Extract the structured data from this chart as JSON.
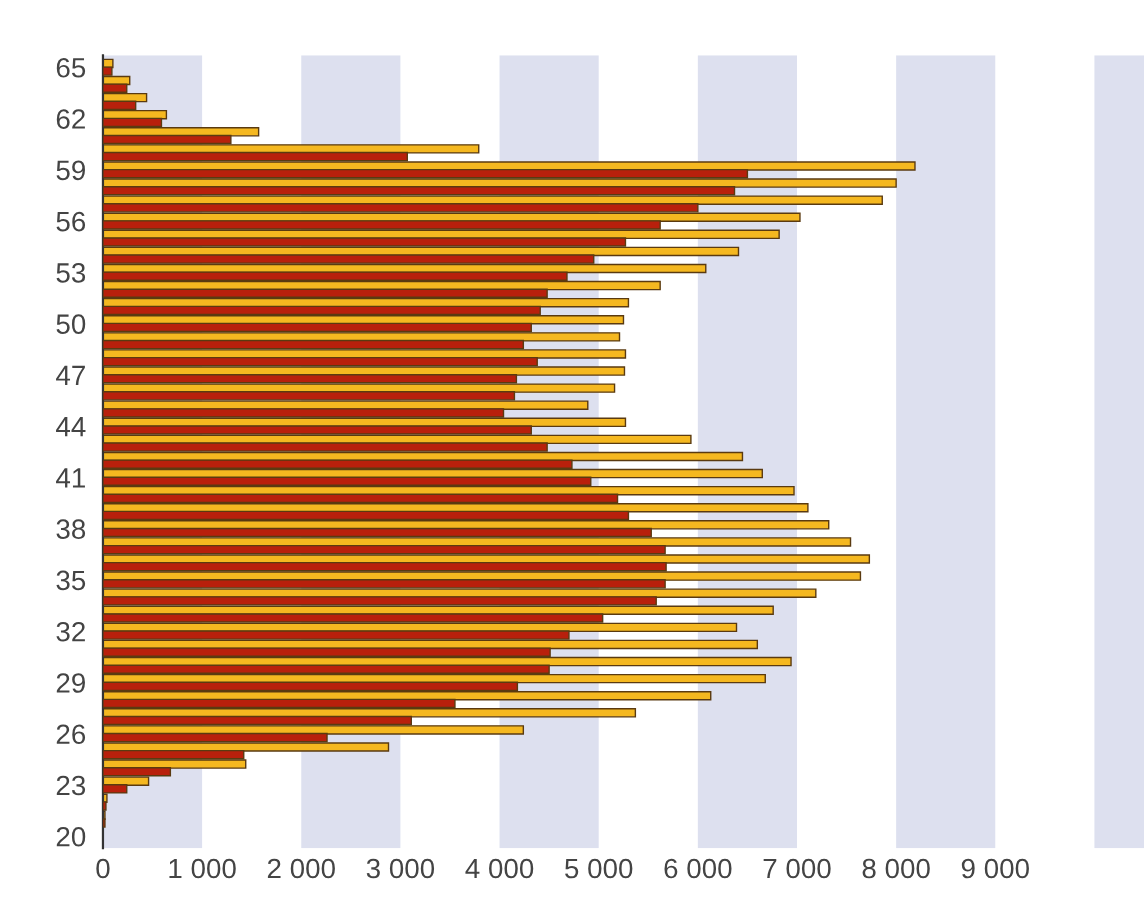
{
  "chart_data": {
    "type": "bar",
    "orientation": "horizontal",
    "categories": [
      "65",
      null,
      null,
      "62",
      null,
      null,
      "59",
      null,
      null,
      "56",
      null,
      null,
      "53",
      null,
      null,
      "50",
      null,
      null,
      "47",
      null,
      null,
      "44",
      null,
      null,
      "41",
      null,
      null,
      "38",
      null,
      null,
      "35",
      null,
      null,
      "32",
      null,
      null,
      "29",
      null,
      null,
      "26",
      null,
      null,
      "23",
      null,
      null,
      "20"
    ],
    "series": [
      {
        "color": "#f5b820",
        "values": [
          100,
          270,
          440,
          640,
          1570,
          3790,
          8190,
          8000,
          7860,
          7030,
          6820,
          6410,
          6080,
          5620,
          5300,
          5250,
          5210,
          5270,
          5260,
          5160,
          4890,
          5270,
          5930,
          6450,
          6650,
          6970,
          7110,
          7320,
          7540,
          7730,
          7640,
          7190,
          6760,
          6390,
          6600,
          6940,
          6680,
          6130,
          5370,
          4240,
          2880,
          1440,
          460,
          40,
          20,
          null
        ]
      },
      {
        "color": "#b8200c",
        "values": [
          90,
          240,
          330,
          590,
          1290,
          3070,
          6500,
          6370,
          6000,
          5620,
          5270,
          4950,
          4680,
          4480,
          4410,
          4320,
          4240,
          4380,
          4170,
          4150,
          4040,
          4320,
          4480,
          4730,
          4920,
          5190,
          5300,
          5530,
          5670,
          5680,
          5670,
          5580,
          5040,
          4700,
          4510,
          4500,
          4180,
          3550,
          3110,
          2260,
          1420,
          680,
          240,
          30,
          20,
          null
        ]
      }
    ],
    "xlim": [
      0,
      10500
    ],
    "xticks": [
      0,
      {
        "value": 1000,
        "label": "1 000"
      },
      {
        "value": 2000,
        "label": "2 000"
      },
      {
        "value": 3000,
        "label": "3 000"
      },
      {
        "value": 4000,
        "label": "4 000"
      },
      {
        "value": 5000,
        "label": "5 000"
      },
      {
        "value": 6000,
        "label": "6 000"
      },
      {
        "value": 7000,
        "label": "7 000"
      },
      {
        "value": 8000,
        "label": "8 000"
      },
      {
        "value": 9000,
        "label": "9 000"
      }
    ],
    "bands": [
      {
        "axis": "x",
        "from": 0,
        "to": 1000,
        "color": "#dde0ef"
      },
      {
        "axis": "x",
        "from": 2000,
        "to": 3000,
        "color": "#dde0ef"
      },
      {
        "axis": "x",
        "from": 4000,
        "to": 5000,
        "color": "#dde0ef"
      },
      {
        "axis": "x",
        "from": 6000,
        "to": 7000,
        "color": "#dde0ef"
      },
      {
        "axis": "x",
        "from": 8000,
        "to": 9000,
        "color": "#dde0ef"
      },
      {
        "axis": "x",
        "from": 10000,
        "to": 10500,
        "color": "#dde0ef"
      }
    ],
    "grid": false,
    "legend": false
  }
}
